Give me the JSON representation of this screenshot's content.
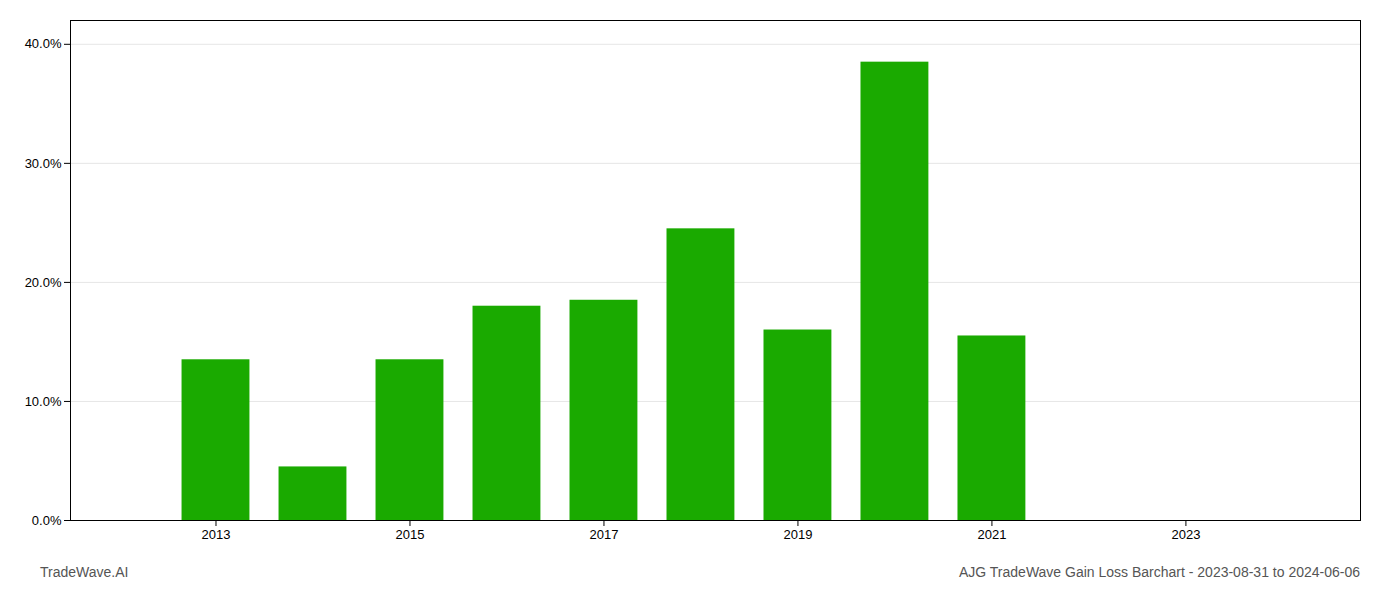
{
  "chart_data": {
    "type": "bar",
    "title": "AJG TradeWave Gain Loss Barchart - 2023-08-31 to 2024-06-06",
    "annotations": [
      "TradeWave.AI"
    ],
    "x": [
      2013,
      2014,
      2015,
      2016,
      2017,
      2018,
      2019,
      2020,
      2021,
      2022
    ],
    "values": [
      0.135,
      0.045,
      0.135,
      0.18,
      0.185,
      0.245,
      0.16,
      0.385,
      0.155,
      0.0
    ],
    "color": "#1aaa00",
    "xlim": [
      2011.5,
      2024.8
    ],
    "xticks": [
      2013,
      2015,
      2017,
      2019,
      2021,
      2023
    ],
    "ylim": [
      0,
      0.42
    ],
    "yticks": [
      {
        "value": 0.0,
        "label": "0.0%"
      },
      {
        "value": 0.1,
        "label": "10.0%"
      },
      {
        "value": 0.2,
        "label": "20.0%"
      },
      {
        "value": 0.3,
        "label": "30.0%"
      },
      {
        "value": 0.4,
        "label": "40.0%"
      }
    ],
    "grid": true
  }
}
